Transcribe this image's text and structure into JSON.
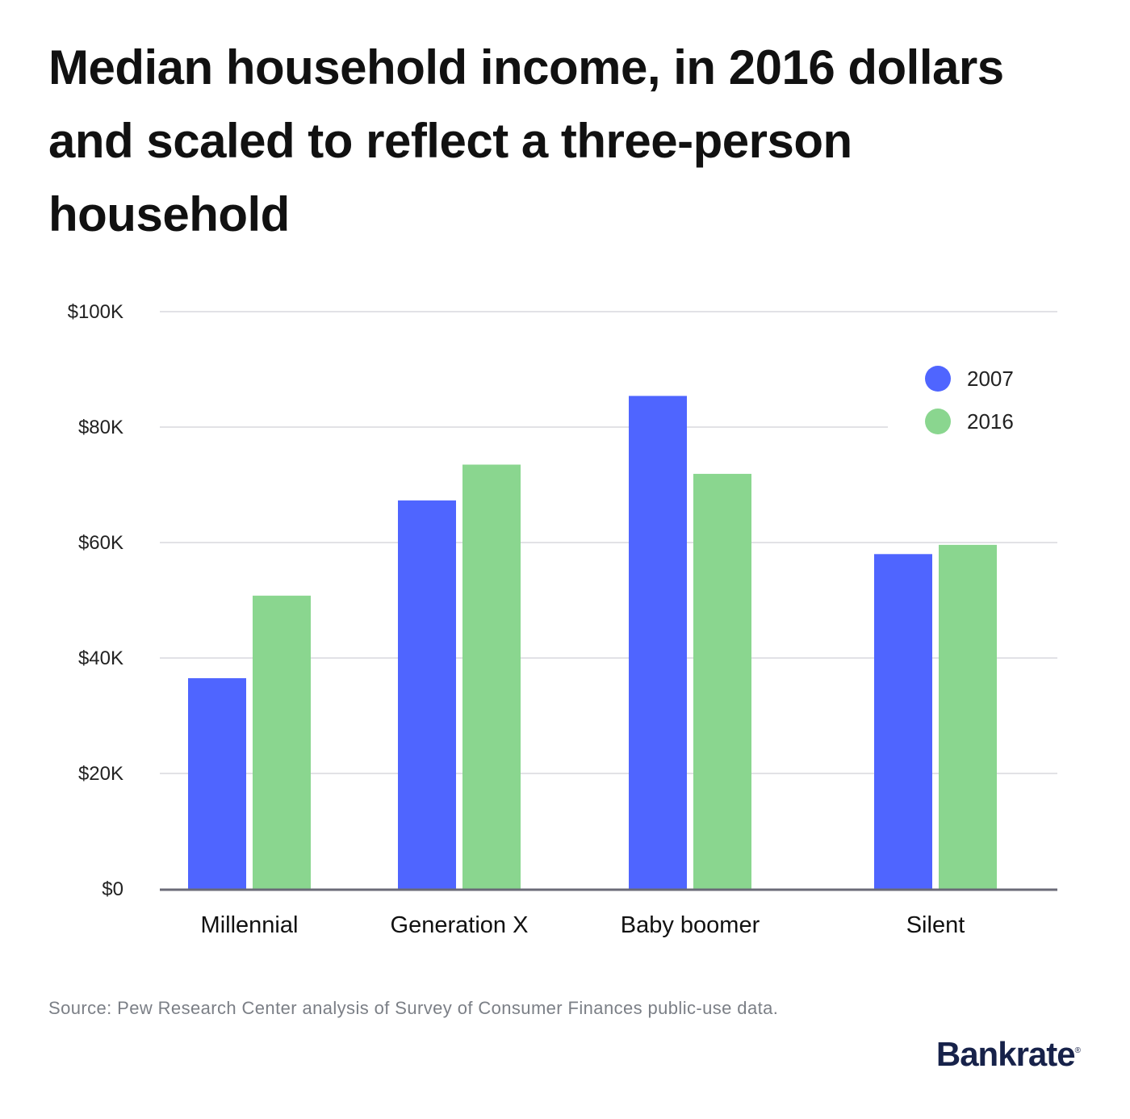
{
  "title": "Median household income, in 2016 dollars and scaled to reflect a three-person household",
  "source": "Source: Pew Research Center analysis of Survey of Consumer Finances public-use data.",
  "brand": "Bankrate",
  "colors": {
    "2007": "#4f65ff",
    "2016": "#8ad68f"
  },
  "chart_data": {
    "type": "bar",
    "categories": [
      "Millennial",
      "Generation X",
      "Baby boomer",
      "Silent"
    ],
    "series": [
      {
        "name": "2007",
        "values": [
          36500,
          67300,
          85400,
          58000
        ]
      },
      {
        "name": "2016",
        "values": [
          50800,
          73500,
          71900,
          59600
        ]
      }
    ],
    "ylim": [
      0,
      100000
    ],
    "yticks": [
      0,
      20000,
      40000,
      60000,
      80000,
      100000
    ],
    "ytick_labels": [
      "$0",
      "$20K",
      "$40K",
      "$60K",
      "$80K",
      "$100K"
    ],
    "grid": true,
    "legend": "top-right"
  }
}
